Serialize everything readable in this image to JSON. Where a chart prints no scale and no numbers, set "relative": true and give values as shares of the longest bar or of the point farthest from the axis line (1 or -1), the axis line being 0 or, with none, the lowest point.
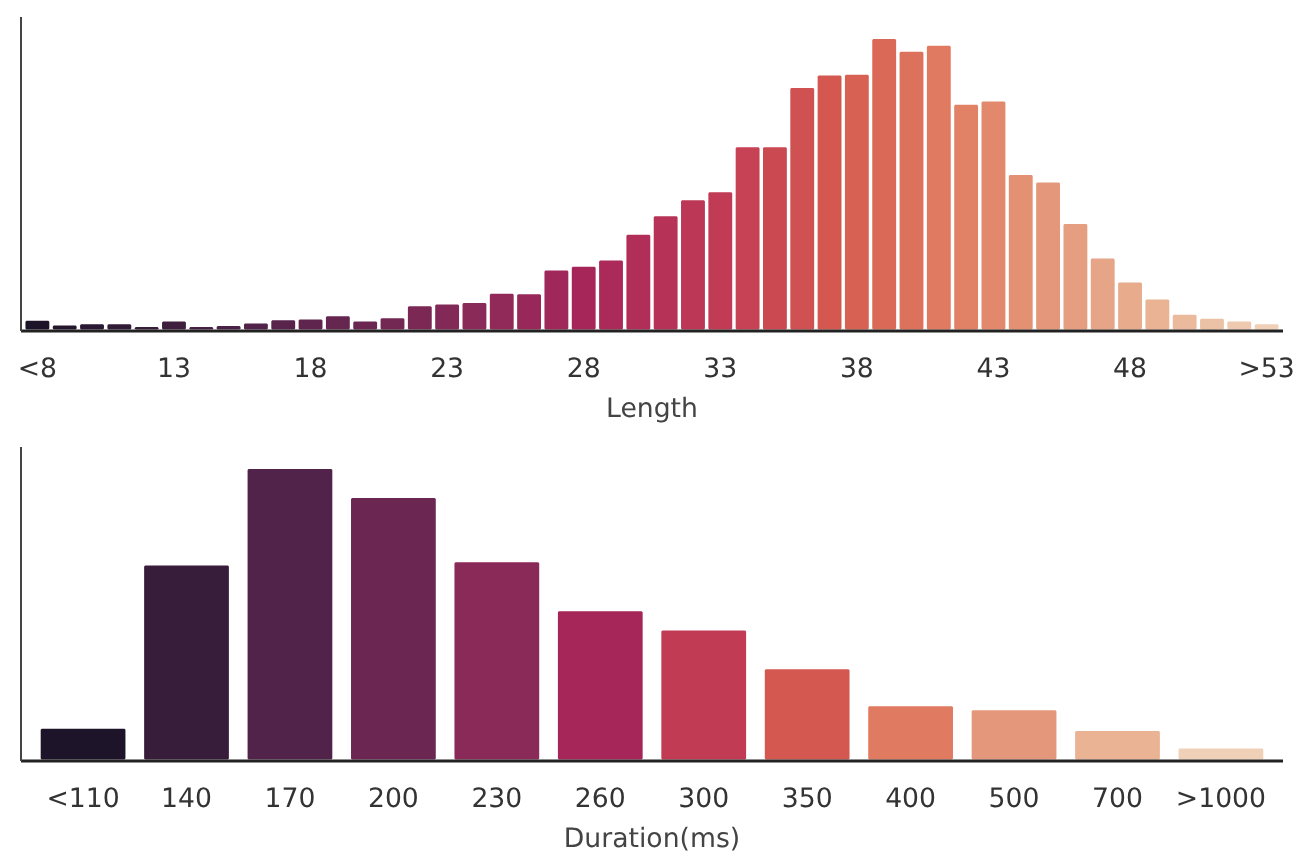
{
  "chart_data": [
    {
      "type": "bar",
      "xlabel": "Length",
      "relative": true,
      "grid": false,
      "categories": [
        "<8",
        null,
        null,
        null,
        null,
        "13",
        null,
        null,
        null,
        null,
        "18",
        null,
        null,
        null,
        null,
        "23",
        null,
        null,
        null,
        null,
        "28",
        null,
        null,
        null,
        null,
        "33",
        null,
        null,
        null,
        null,
        "38",
        null,
        null,
        null,
        null,
        "43",
        null,
        null,
        null,
        null,
        "48",
        null,
        null,
        null,
        null,
        ">53"
      ],
      "values": [
        0.023,
        0.007,
        0.011,
        0.011,
        0.002,
        0.021,
        0.002,
        0.005,
        0.014,
        0.025,
        0.028,
        0.039,
        0.021,
        0.032,
        0.074,
        0.08,
        0.085,
        0.117,
        0.115,
        0.198,
        0.211,
        0.232,
        0.322,
        0.386,
        0.441,
        0.469,
        0.625,
        0.625,
        0.83,
        0.874,
        0.876,
        1,
        0.956,
        0.977,
        0.772,
        0.784,
        0.529,
        0.503,
        0.359,
        0.239,
        0.156,
        0.097,
        0.044,
        0.03,
        0.021,
        0.011
      ],
      "colors": [
        "#1d1429",
        "#24162d",
        "#2a1832",
        "#311b36",
        "#381d3a",
        "#3e1f3e",
        "#452042",
        "#4b2246",
        "#52234a",
        "#58244c",
        "#5f254e",
        "#652650",
        "#6b2752",
        "#732854",
        "#7b2855",
        "#822957",
        "#8a2a59",
        "#912959",
        "#982859",
        "#9f275a",
        "#a6265a",
        "#ab2a59",
        "#b12e58",
        "#b63357",
        "#bc3756",
        "#c13b55",
        "#c64254",
        "#cb4a52",
        "#cf5151",
        "#d4584f",
        "#d76153",
        "#da6958",
        "#dd725c",
        "#e07a60",
        "#e18166",
        "#e2896d",
        "#e39073",
        "#e4977a",
        "#e59e80",
        "#e6a587",
        "#e8ac8d",
        "#e9b394",
        "#ebba9d",
        "#ecc2a6",
        "#eec9af",
        "#f0d1b8"
      ]
    },
    {
      "type": "bar",
      "xlabel": "Duration(ms)",
      "relative": true,
      "grid": false,
      "categories": [
        "<110",
        "140",
        "170",
        "200",
        "230",
        "260",
        "300",
        "350",
        "400",
        "500",
        "700",
        ">1000"
      ],
      "values": [
        0.1,
        0.666,
        1,
        0.9,
        0.677,
        0.507,
        0.44,
        0.306,
        0.178,
        0.164,
        0.092,
        0.031
      ],
      "colors": [
        "#1d1429",
        "#381d3a",
        "#52234a",
        "#6b2752",
        "#8a2a59",
        "#a6265a",
        "#c13b55",
        "#d4584f",
        "#e07a60",
        "#e4977a",
        "#e9b394",
        "#f0d1b8"
      ]
    }
  ]
}
